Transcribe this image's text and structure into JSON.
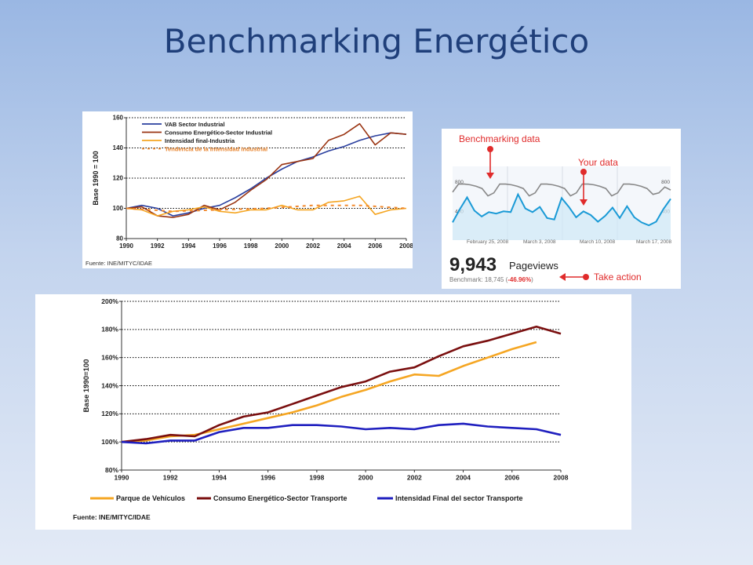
{
  "slide": {
    "title": "Benchmarking Energético"
  },
  "chart_data": [
    {
      "type": "line",
      "ylabel": "Base 1990 = 100",
      "ylim": [
        80,
        160
      ],
      "yticks": [
        80,
        100,
        120,
        140,
        160
      ],
      "xticks": [
        1990,
        1992,
        1994,
        1996,
        1998,
        2000,
        2002,
        2004,
        2006,
        2008
      ],
      "xlim": [
        1990,
        2008
      ],
      "grid": true,
      "legend_position": "top-left",
      "source": "Fuente: INE/MITYC/IDAE",
      "series": [
        {
          "name": "VAB Sector Industrial",
          "color": "#2a3f9e",
          "dashed": false,
          "x": [
            1990,
            1991,
            1992,
            1993,
            1994,
            1995,
            1996,
            1997,
            1998,
            1999,
            2000,
            2001,
            2002,
            2003,
            2004,
            2005,
            2006,
            2007,
            2008
          ],
          "y": [
            100,
            102,
            100,
            95,
            97,
            100,
            102,
            107,
            113,
            120,
            126,
            131,
            134,
            138,
            141,
            145,
            148,
            150,
            149
          ]
        },
        {
          "name": "Consumo Energético-Sector Industrial",
          "color": "#9a3412",
          "dashed": false,
          "x": [
            1990,
            1991,
            1992,
            1993,
            1994,
            1995,
            1996,
            1997,
            1998,
            1999,
            2000,
            2001,
            2002,
            2003,
            2004,
            2005,
            2006,
            2007,
            2008
          ],
          "y": [
            100,
            101,
            95,
            94,
            96,
            102,
            99,
            104,
            112,
            119,
            129,
            131,
            133,
            145,
            149,
            156,
            142,
            150,
            149
          ]
        },
        {
          "name": "Intensidad final-Industria",
          "color": "#f5a623",
          "dashed": false,
          "x": [
            1990,
            1991,
            1992,
            1993,
            1994,
            1995,
            1996,
            1997,
            1998,
            1999,
            2000,
            2001,
            2002,
            2003,
            2004,
            2005,
            2006,
            2007,
            2008
          ],
          "y": [
            100,
            99,
            95,
            98,
            99,
            101,
            98,
            97,
            99,
            99,
            102,
            99,
            99,
            104,
            105,
            108,
            96,
            99,
            100
          ]
        },
        {
          "name": "Tendencia de la Intensidad Industrial",
          "color": "#f28a2e",
          "dashed": true,
          "x": [
            1990,
            1993,
            1996,
            1999,
            2002,
            2005,
            2008
          ],
          "y": [
            100,
            98,
            99,
            100,
            102,
            102,
            100
          ]
        }
      ]
    },
    {
      "type": "line",
      "labels": {
        "benchmarking": "Benchmarking data",
        "your_data": "Your data",
        "take_action": "Take action",
        "pageviews_value": "9,943",
        "pageviews_label": "Pageviews",
        "benchmark_prefix": "Benchmark: 18,745 (",
        "benchmark_change": "-46.96%",
        "benchmark_suffix": ")"
      },
      "y_axis_labels": [
        "800",
        "400"
      ],
      "x_labels": [
        "February 25, 2008",
        "March 3, 2008",
        "March 10, 2008",
        "March 17, 2008"
      ],
      "ylim": [
        0,
        1000
      ],
      "series": [
        {
          "name": "Benchmarking data",
          "color": "#888888",
          "y": [
            650,
            760,
            760,
            750,
            730,
            700,
            600,
            640,
            760,
            760,
            750,
            730,
            700,
            600,
            640,
            760,
            760,
            750,
            730,
            700,
            600,
            640,
            760,
            760,
            750,
            730,
            700,
            600,
            640,
            760,
            760,
            750,
            730,
            700,
            620,
            640,
            720,
            680
          ]
        },
        {
          "name": "Your data",
          "color": "#1a9ad6",
          "y": [
            240,
            420,
            580,
            400,
            320,
            380,
            360,
            390,
            380,
            620,
            430,
            380,
            450,
            300,
            280,
            570,
            450,
            310,
            390,
            340,
            250,
            330,
            440,
            300,
            460,
            310,
            240,
            200,
            250,
            420,
            560
          ]
        }
      ]
    },
    {
      "type": "line",
      "ylabel": "Base 1990=100",
      "ylim": [
        80,
        200
      ],
      "yticks": [
        80,
        100,
        120,
        140,
        160,
        180,
        200
      ],
      "ytick_suffix": "%",
      "xticks": [
        1990,
        1992,
        1994,
        1996,
        1998,
        2000,
        2002,
        2004,
        2006,
        2008
      ],
      "xlim": [
        1990,
        2008
      ],
      "grid": true,
      "legend_position": "bottom",
      "source": "Fuente: INE/MITYC/IDAE",
      "series": [
        {
          "name": "Parque de Vehículos",
          "color": "#f5a623",
          "x": [
            1990,
            1991,
            1992,
            1993,
            1994,
            1995,
            1996,
            1997,
            1998,
            1999,
            2000,
            2001,
            2002,
            2003,
            2004,
            2005,
            2006,
            2007
          ],
          "y": [
            100,
            101,
            104,
            105,
            109,
            113,
            117,
            121,
            126,
            132,
            137,
            143,
            148,
            147,
            154,
            160,
            166,
            171
          ]
        },
        {
          "name": "Consumo Energético-Sector Transporte",
          "color": "#7a0f0f",
          "x": [
            1990,
            1991,
            1992,
            1993,
            1994,
            1995,
            1996,
            1997,
            1998,
            1999,
            2000,
            2001,
            2002,
            2003,
            2004,
            2005,
            2006,
            2007,
            2008
          ],
          "y": [
            100,
            102,
            105,
            104,
            112,
            118,
            121,
            127,
            133,
            139,
            143,
            150,
            153,
            161,
            168,
            172,
            177,
            182,
            177
          ]
        },
        {
          "name": "Intensidad Final del sector Transporte",
          "color": "#1f1fbf",
          "x": [
            1990,
            1991,
            1992,
            1993,
            1994,
            1995,
            1996,
            1997,
            1998,
            1999,
            2000,
            2001,
            2002,
            2003,
            2004,
            2005,
            2006,
            2007,
            2008
          ],
          "y": [
            100,
            99,
            101,
            101,
            107,
            110,
            110,
            112,
            112,
            111,
            109,
            110,
            109,
            112,
            113,
            111,
            110,
            109,
            105
          ]
        }
      ]
    }
  ]
}
